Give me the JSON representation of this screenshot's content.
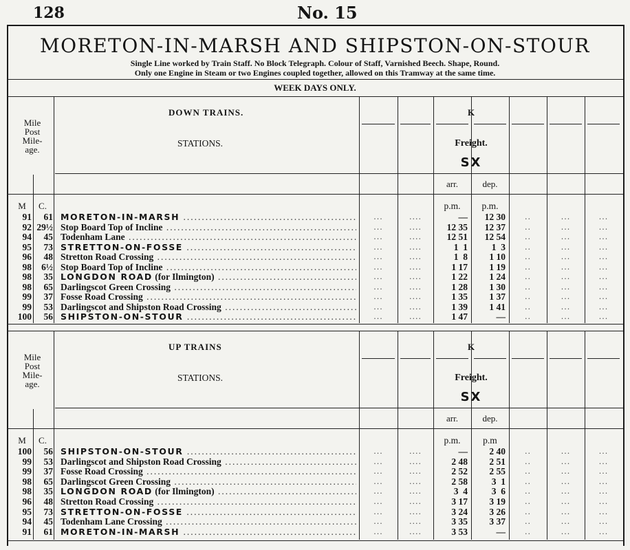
{
  "page": {
    "number": "128",
    "table_no": "No. 15"
  },
  "heading": {
    "title": "MORETON-IN-MARSH  AND  SHIPSTON-ON-STOUR",
    "line1": "Single Line worked by Train Staff.   No Block Telegraph.   Colour of Staff, Varnished Beech.   Shape, Round.",
    "line2": "Only one Engine in Steam or two Engines coupled together, allowed on this Tramway at the same time.",
    "days": "WEEK DAYS ONLY."
  },
  "empty_cell": {
    "a": "...",
    "b": "..",
    "c": "...."
  },
  "down": {
    "mile_header": [
      "Mile",
      "Post",
      "Mile-",
      "age."
    ],
    "section_title": "DOWN TRAINS.",
    "stations_label": "STATIONS.",
    "train_code": "K",
    "train_type": "Freight.",
    "train_days": "SX",
    "arr_label": "arr.",
    "dep_label": "dep.",
    "m_label": "M",
    "c_label": "C.",
    "arr_unit": "p.m.",
    "dep_unit": "p.m.",
    "rows": [
      {
        "m": "91",
        "c": "61",
        "name": "MORETON-IN-MARSH",
        "note": "",
        "caps": true,
        "arr": "—",
        "dep": "12 30"
      },
      {
        "m": "92",
        "c": "29½",
        "name": "Stop Board Top of Incline",
        "note": "",
        "caps": false,
        "arr": "12 35",
        "dep": "12 37"
      },
      {
        "m": "94",
        "c": "45",
        "name": "Todenham Lane",
        "note": "",
        "caps": false,
        "arr": "12 51",
        "dep": "12 54"
      },
      {
        "m": "95",
        "c": "73",
        "name": "STRETTON-ON-FOSSE",
        "note": "",
        "caps": true,
        "arr": "1  1",
        "dep": "1  3"
      },
      {
        "m": "96",
        "c": "48",
        "name": "Stretton Road Crossing",
        "note": "",
        "caps": false,
        "arr": "1  8",
        "dep": "1 10"
      },
      {
        "m": "98",
        "c": "6½",
        "name": "Stop Board Top of Incline",
        "note": "",
        "caps": false,
        "arr": "1 17",
        "dep": "1 19"
      },
      {
        "m": "98",
        "c": "35",
        "name": "LONGDON ROAD",
        "note": " (for Ilmington)",
        "caps": true,
        "arr": "1 22",
        "dep": "1 24"
      },
      {
        "m": "98",
        "c": "65",
        "name": "Darlingscot Green Crossing",
        "note": "",
        "caps": false,
        "arr": "1 28",
        "dep": "1 30"
      },
      {
        "m": "99",
        "c": "37",
        "name": "Fosse Road Crossing",
        "note": "",
        "caps": false,
        "arr": "1 35",
        "dep": "1 37"
      },
      {
        "m": "99",
        "c": "53",
        "name": "Darlingscot and Shipston Road Crossing",
        "note": "",
        "caps": false,
        "arr": "1 39",
        "dep": "1 41"
      },
      {
        "m": "100",
        "c": "56",
        "name": "SHIPSTON-ON-STOUR",
        "note": "",
        "caps": true,
        "arr": "1 47",
        "dep": "—"
      }
    ]
  },
  "up": {
    "mile_header": [
      "Mile",
      "Post",
      "Mile-",
      "age."
    ],
    "section_title": "UP TRAINS",
    "stations_label": "STATIONS.",
    "train_code": "K",
    "train_type": "Freight.",
    "train_days": "SX",
    "arr_label": "arr.",
    "dep_label": "dep.",
    "m_label": "M",
    "c_label": "C.",
    "arr_unit": "p.m.",
    "dep_unit": "p.m",
    "rows": [
      {
        "m": "100",
        "c": "56",
        "name": "SHIPSTON-ON-STOUR",
        "note": "",
        "caps": true,
        "arr": "—",
        "dep": "2 40"
      },
      {
        "m": "99",
        "c": "53",
        "name": "Darlingscot and Shipston Road Crossing",
        "note": "",
        "caps": false,
        "arr": "2 48",
        "dep": "2 51"
      },
      {
        "m": "99",
        "c": "37",
        "name": "Fosse Road Crossing",
        "note": "",
        "caps": false,
        "arr": "2 52",
        "dep": "2 55"
      },
      {
        "m": "98",
        "c": "65",
        "name": "Darlingscot Green Crossing",
        "note": "",
        "caps": false,
        "arr": "2 58",
        "dep": "3  1"
      },
      {
        "m": "98",
        "c": "35",
        "name": "LONGDON ROAD",
        "note": " (for Ilmington)",
        "caps": true,
        "arr": "3  4",
        "dep": "3  6"
      },
      {
        "m": "96",
        "c": "48",
        "name": "Stretton Road Crossing",
        "note": "",
        "caps": false,
        "arr": "3 17",
        "dep": "3 19"
      },
      {
        "m": "95",
        "c": "73",
        "name": "STRETTON-ON-FOSSE",
        "note": "",
        "caps": true,
        "arr": "3 24",
        "dep": "3 26"
      },
      {
        "m": "94",
        "c": "45",
        "name": "Todenham Lane Crossing",
        "note": "",
        "caps": false,
        "arr": "3 35",
        "dep": "3 37"
      },
      {
        "m": "91",
        "c": "61",
        "name": "MORETON-IN-MARSH",
        "note": "",
        "caps": true,
        "arr": "3 53",
        "dep": "—"
      }
    ]
  }
}
